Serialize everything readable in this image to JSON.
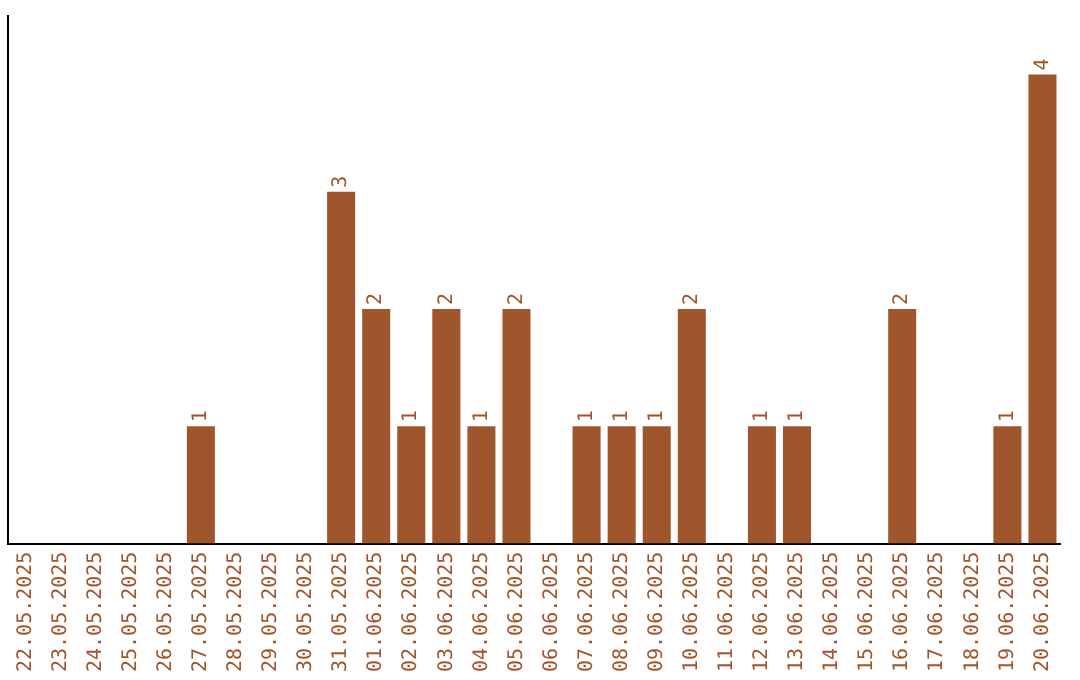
{
  "chart_data": {
    "type": "bar",
    "categories": [
      "22.05.2025",
      "23.05.2025",
      "24.05.2025",
      "25.05.2025",
      "26.05.2025",
      "27.05.2025",
      "28.05.2025",
      "29.05.2025",
      "30.05.2025",
      "31.05.2025",
      "01.06.2025",
      "02.06.2025",
      "03.06.2025",
      "04.06.2025",
      "05.06.2025",
      "06.06.2025",
      "07.06.2025",
      "08.06.2025",
      "09.06.2025",
      "10.06.2025",
      "11.06.2025",
      "12.06.2025",
      "13.06.2025",
      "14.06.2025",
      "15.06.2025",
      "16.06.2025",
      "17.06.2025",
      "18.06.2025",
      "19.06.2025",
      "20.06.2025"
    ],
    "values": [
      0,
      0,
      0,
      0,
      0,
      1,
      0,
      0,
      0,
      3,
      2,
      1,
      2,
      1,
      2,
      0,
      1,
      1,
      1,
      2,
      0,
      1,
      1,
      0,
      0,
      2,
      0,
      0,
      1,
      4
    ],
    "value_labels": [
      null,
      null,
      null,
      null,
      null,
      "1",
      null,
      null,
      null,
      "3",
      "2",
      "1",
      "2",
      "1",
      "2",
      null,
      "1",
      "1",
      "1",
      "2",
      null,
      "1",
      "1",
      null,
      null,
      "2",
      null,
      null,
      "1",
      "4"
    ],
    "color": "#a0562c",
    "grid": false,
    "legend": false,
    "tick_labels": "x"
  }
}
